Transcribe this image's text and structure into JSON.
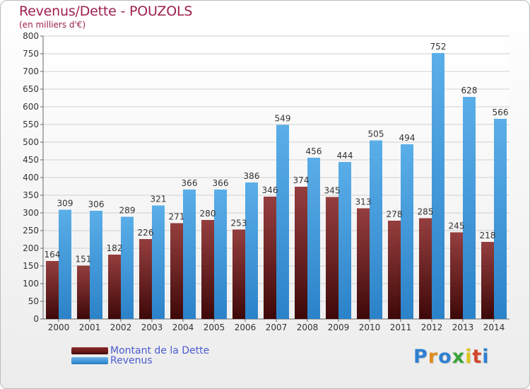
{
  "header": {
    "title": "Revenus/Dette - POUZOLS",
    "subtitle": "(en milliers d'€)"
  },
  "legend": [
    {
      "label": "Montant de la Dette",
      "color": "#6b1a1a"
    },
    {
      "label": "Revenus",
      "color": "#3a8fd6"
    }
  ],
  "logo": {
    "text": "Proxiti",
    "letters": [
      {
        "ch": "P",
        "color": "#2f7fd0"
      },
      {
        "ch": "r",
        "color": "#e08a1e"
      },
      {
        "ch": "o",
        "color": "#2f7fd0"
      },
      {
        "ch": "x",
        "color": "#3aa33a"
      },
      {
        "ch": "i",
        "color": "#e0c21e"
      },
      {
        "ch": "t",
        "color": "#d2462a"
      },
      {
        "ch": "i",
        "color": "#2f7fd0"
      }
    ]
  },
  "chart_data": {
    "type": "bar",
    "title": "Revenus/Dette - POUZOLS",
    "subtitle": "(en milliers d'€)",
    "categories": [
      "2000",
      "2001",
      "2002",
      "2003",
      "2004",
      "2005",
      "2006",
      "2007",
      "2008",
      "2009",
      "2010",
      "2011",
      "2012",
      "2013",
      "2014"
    ],
    "series": [
      {
        "name": "Montant de la Dette",
        "color": "#7a2020",
        "values": [
          164,
          151,
          182,
          226,
          271,
          280,
          253,
          346,
          374,
          345,
          313,
          278,
          285,
          245,
          218
        ],
        "labels": [
          "164",
          "151",
          "182",
          "226",
          "271",
          "280",
          "253",
          "346",
          "374",
          "345",
          "313",
          "278",
          "285",
          "245",
          "218"
        ]
      },
      {
        "name": "Revenus",
        "color": "#3d94da",
        "values": [
          309,
          306,
          289,
          321,
          366,
          366,
          386,
          549,
          456,
          444,
          505,
          494,
          752,
          628,
          566
        ],
        "labels": [
          "309",
          "306",
          "289",
          "321",
          "366",
          "366",
          "386",
          "549",
          "456",
          "444",
          "505",
          "494",
          "752",
          "628",
          "566"
        ]
      }
    ],
    "ylim": [
      0,
      800
    ],
    "yticks": [
      0,
      50,
      100,
      150,
      200,
      250,
      300,
      350,
      400,
      450,
      500,
      550,
      600,
      650,
      700,
      750,
      800
    ],
    "grid": true,
    "legend_position": "bottom-left"
  }
}
